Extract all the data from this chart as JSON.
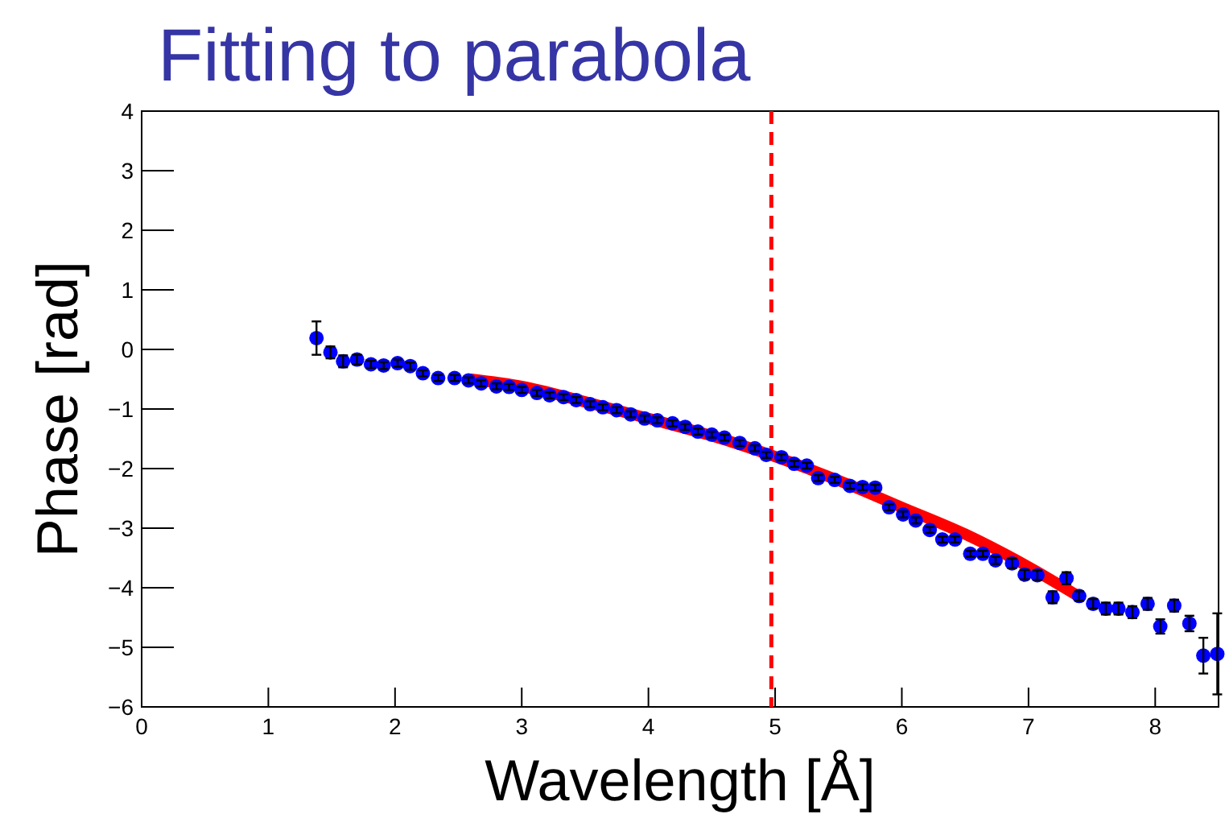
{
  "chart_data": {
    "type": "scatter",
    "title": "Fitting to parabola",
    "xlabel": "Wavelength [Å]",
    "ylabel": "Phase [rad]",
    "xlim": [
      0,
      8.5
    ],
    "ylim": [
      -6,
      4
    ],
    "xticks": [
      0,
      1,
      2,
      3,
      4,
      5,
      6,
      7,
      8
    ],
    "yticks": [
      -6,
      -5,
      -4,
      -3,
      -2,
      -1,
      0,
      1,
      2,
      3,
      4
    ],
    "marker": "circle",
    "grid": false,
    "ref_lines": [
      {
        "axis": "x",
        "value": 4.97,
        "color": "#ff0000",
        "line_style": "dashed"
      }
    ],
    "series": [
      {
        "type": "line",
        "marker": "none",
        "color": "#ff0000",
        "x": [
          2.6,
          3,
          3.5,
          4,
          4.5,
          5,
          5.5,
          6,
          6.5,
          7,
          7.4
        ],
        "values": [
          -0.5,
          -0.62,
          -0.88,
          -1.16,
          -1.45,
          -1.8,
          -2.2,
          -2.65,
          -3.1,
          -3.65,
          -4.15
        ]
      },
      {
        "color": "#0000ff",
        "x": [
          1.38,
          1.49,
          1.59,
          1.7,
          1.81,
          1.91,
          2.02,
          2.12,
          2.22,
          2.34,
          2.47,
          2.58,
          2.68,
          2.8,
          2.9,
          3.0,
          3.12,
          3.22,
          3.33,
          3.43,
          3.54,
          3.64,
          3.75,
          3.86,
          3.97,
          4.07,
          4.19,
          4.29,
          4.39,
          4.5,
          4.6,
          4.72,
          4.84,
          4.93,
          5.05,
          5.15,
          5.25,
          5.34,
          5.47,
          5.59,
          5.69,
          5.79,
          5.9,
          6.01,
          6.11,
          6.22,
          6.32,
          6.42,
          6.54,
          6.64,
          6.74,
          6.87,
          6.97,
          7.07,
          7.19,
          7.3,
          7.4,
          7.51,
          7.61,
          7.71,
          7.82,
          7.94,
          8.04,
          8.15,
          8.27,
          8.38,
          8.49
        ],
        "values": [
          0.19,
          -0.05,
          -0.2,
          -0.17,
          -0.25,
          -0.27,
          -0.23,
          -0.28,
          -0.4,
          -0.48,
          -0.48,
          -0.52,
          -0.57,
          -0.62,
          -0.63,
          -0.68,
          -0.73,
          -0.77,
          -0.8,
          -0.85,
          -0.92,
          -0.97,
          -1.02,
          -1.09,
          -1.16,
          -1.19,
          -1.24,
          -1.3,
          -1.38,
          -1.43,
          -1.48,
          -1.57,
          -1.66,
          -1.77,
          -1.81,
          -1.92,
          -1.95,
          -2.16,
          -2.19,
          -2.29,
          -2.31,
          -2.32,
          -2.65,
          -2.77,
          -2.87,
          -3.03,
          -3.19,
          -3.19,
          -3.43,
          -3.43,
          -3.54,
          -3.59,
          -3.78,
          -3.79,
          -4.16,
          -3.84,
          -4.14,
          -4.27,
          -4.35,
          -4.35,
          -4.41,
          -4.27,
          -4.65,
          -4.3,
          -4.6,
          -5.14,
          -5.11
        ],
        "errors": [
          0.28,
          0.1,
          0.1,
          0.08,
          0.06,
          0.06,
          0.06,
          0.06,
          0.05,
          0.05,
          0.05,
          0.05,
          0.05,
          0.05,
          0.05,
          0.05,
          0.05,
          0.05,
          0.05,
          0.05,
          0.05,
          0.05,
          0.05,
          0.05,
          0.05,
          0.05,
          0.05,
          0.05,
          0.05,
          0.05,
          0.05,
          0.05,
          0.05,
          0.05,
          0.05,
          0.05,
          0.05,
          0.05,
          0.05,
          0.05,
          0.05,
          0.05,
          0.05,
          0.05,
          0.05,
          0.05,
          0.05,
          0.05,
          0.05,
          0.05,
          0.06,
          0.08,
          0.08,
          0.08,
          0.1,
          0.1,
          0.08,
          0.08,
          0.1,
          0.1,
          0.1,
          0.1,
          0.12,
          0.1,
          0.13,
          0.3,
          0.68
        ]
      }
    ]
  }
}
